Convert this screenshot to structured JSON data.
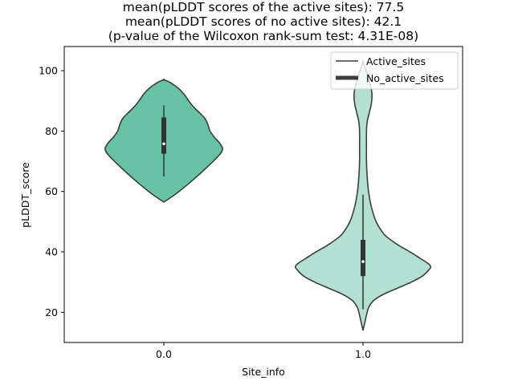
{
  "chart_data": {
    "type": "violin",
    "title_lines": [
      "mean(pLDDT scores of the active sites): 77.5",
      "mean(pLDDT scores of no active sites): 42.1",
      "(p-value of the Wilcoxon rank-sum test: 4.31E-08)"
    ],
    "xlabel": "Site_info",
    "ylabel": "pLDDT_score",
    "categories": [
      "0.0",
      "1.0"
    ],
    "ylim": [
      10,
      108
    ],
    "yticks": [
      20,
      40,
      60,
      80,
      100
    ],
    "legend": {
      "placement": "top-right",
      "entries": [
        {
          "label": "Active_sites",
          "style": "thin-line"
        },
        {
          "label": "No_active_sites",
          "style": "thick-line"
        }
      ]
    },
    "series": [
      {
        "name": "Active_sites",
        "category": "0.0",
        "color": "#66c2a5",
        "opacity": 1.0,
        "density": [
          [
            56.5,
            0.0
          ],
          [
            58,
            0.1
          ],
          [
            60,
            0.22
          ],
          [
            63,
            0.38
          ],
          [
            66,
            0.53
          ],
          [
            69,
            0.67
          ],
          [
            72,
            0.8
          ],
          [
            74,
            0.85
          ],
          [
            76,
            0.81
          ],
          [
            78,
            0.73
          ],
          [
            80,
            0.67
          ],
          [
            82,
            0.64
          ],
          [
            84,
            0.6
          ],
          [
            86,
            0.52
          ],
          [
            88,
            0.43
          ],
          [
            90,
            0.36
          ],
          [
            92,
            0.3
          ],
          [
            94,
            0.22
          ],
          [
            96,
            0.1
          ],
          [
            97,
            0.0
          ]
        ],
        "box": {
          "q1": 72.5,
          "median": 75.8,
          "q3": 84.5,
          "whisker_low": 65,
          "whisker_high": 88.5
        }
      },
      {
        "name": "No_active_sites",
        "category": "1.0",
        "color": "#66c2a5",
        "opacity": 0.5,
        "density": [
          [
            14,
            0.0
          ],
          [
            16,
            0.02
          ],
          [
            18,
            0.04
          ],
          [
            20,
            0.06
          ],
          [
            22,
            0.09
          ],
          [
            24,
            0.16
          ],
          [
            26,
            0.3
          ],
          [
            28,
            0.5
          ],
          [
            30,
            0.7
          ],
          [
            32,
            0.86
          ],
          [
            34,
            0.95
          ],
          [
            35,
            0.98
          ],
          [
            36,
            0.95
          ],
          [
            38,
            0.82
          ],
          [
            40,
            0.68
          ],
          [
            42,
            0.53
          ],
          [
            44,
            0.4
          ],
          [
            46,
            0.3
          ],
          [
            50,
            0.19
          ],
          [
            55,
            0.12
          ],
          [
            60,
            0.08
          ],
          [
            65,
            0.06
          ],
          [
            70,
            0.05
          ],
          [
            75,
            0.05
          ],
          [
            80,
            0.05
          ],
          [
            83,
            0.06
          ],
          [
            86,
            0.09
          ],
          [
            89,
            0.12
          ],
          [
            92,
            0.13
          ],
          [
            95,
            0.11
          ],
          [
            98,
            0.07
          ],
          [
            101,
            0.03
          ],
          [
            103,
            0.0
          ]
        ],
        "box": {
          "q1": 32,
          "median": 36.8,
          "q3": 44,
          "whisker_low": 21,
          "whisker_high": 59
        }
      }
    ],
    "box_color": "#333333",
    "outline_color": "#3d3d3d"
  }
}
